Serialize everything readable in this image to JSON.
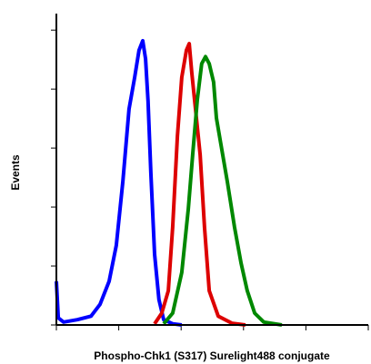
{
  "chart_data": {
    "type": "line",
    "x_label": "Phospho-Chk1 (S317) Surelight488 conjugate",
    "y_label": "Events",
    "xlim": [
      0,
      100
    ],
    "xticks": [
      0,
      20,
      40,
      60,
      80,
      100
    ],
    "ylim": [
      0,
      5.28
    ],
    "yticks": [
      0,
      1,
      2,
      3,
      4,
      5
    ],
    "series": [
      {
        "color": "#0000ff",
        "x": [
          0.0,
          0.6,
          2.3,
          6.7,
          11.1,
          14.0,
          16.9,
          19.2,
          21.3,
          23.3,
          25.1,
          26.5,
          27.7,
          28.6,
          29.4,
          30.3,
          31.5,
          32.9,
          34.4,
          37.3,
          40.2
        ],
        "values": [
          0.74,
          0.12,
          0.05,
          0.09,
          0.15,
          0.35,
          0.74,
          1.35,
          2.43,
          3.66,
          4.2,
          4.66,
          4.82,
          4.51,
          3.8,
          2.58,
          1.2,
          0.43,
          0.09,
          0.02,
          0
        ]
      },
      {
        "color": "#dd0000",
        "x": [
          31.5,
          33.8,
          35.9,
          37.3,
          38.8,
          40.2,
          41.7,
          42.6,
          43.4,
          44.6,
          46.1,
          47.5,
          49.0,
          51.9,
          56.3,
          60.6
        ],
        "values": [
          0.02,
          0.2,
          0.58,
          1.66,
          3.2,
          4.2,
          4.66,
          4.77,
          4.28,
          3.66,
          2.89,
          1.66,
          0.58,
          0.15,
          0.03,
          0
        ]
      },
      {
        "color": "#008800",
        "x": [
          34.4,
          37.3,
          40.2,
          42.3,
          43.7,
          45.2,
          46.6,
          47.8,
          49.0,
          50.4,
          51.3,
          52.8,
          54.8,
          57.1,
          59.2,
          61.2,
          63.6,
          66.5,
          72.3
        ],
        "values": [
          0.02,
          0.2,
          0.89,
          1.97,
          2.89,
          3.82,
          4.43,
          4.55,
          4.43,
          4.12,
          3.51,
          3.05,
          2.43,
          1.66,
          1.05,
          0.58,
          0.2,
          0.05,
          0
        ]
      }
    ]
  }
}
